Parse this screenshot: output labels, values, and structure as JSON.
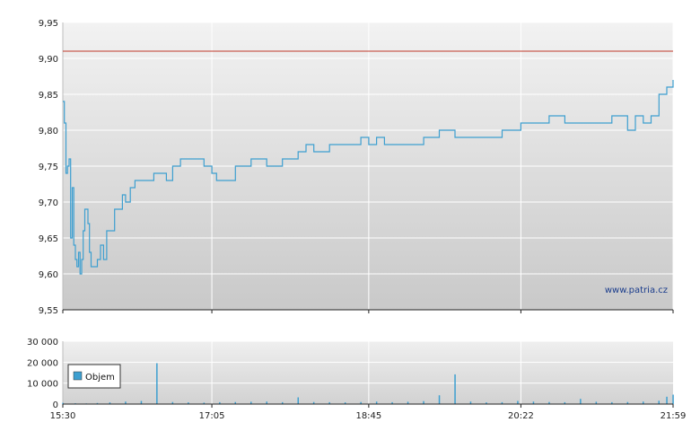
{
  "colors": {
    "price_line": "#3d9fd0",
    "reference_line": "#c0392b",
    "volume_bar": "#3d9fd0",
    "grid": "#ffffff",
    "axis": "#222222",
    "watermark": "#1a3c8c"
  },
  "watermark": "www.patria.cz",
  "chart_data": [
    {
      "type": "line",
      "title": "",
      "xlabel": "",
      "ylabel": "",
      "ylim": [
        9.55,
        9.95
      ],
      "yticks": [
        "9,55",
        "9,60",
        "9,65",
        "9,70",
        "9,75",
        "9,80",
        "9,85",
        "9,90",
        "9,95"
      ],
      "y_tick_values": [
        9.55,
        9.6,
        9.65,
        9.7,
        9.75,
        9.8,
        9.85,
        9.9,
        9.95
      ],
      "xlim": [
        "15:30",
        "21:59"
      ],
      "reference_line": 9.91,
      "grid": true,
      "series": [
        {
          "x": [
            "15:30",
            "15:31",
            "15:32",
            "15:33",
            "15:34",
            "15:35",
            "15:36",
            "15:37",
            "15:38",
            "15:39",
            "15:40",
            "15:41",
            "15:42",
            "15:43",
            "15:44",
            "15:45",
            "15:46",
            "15:47",
            "15:48",
            "15:50",
            "15:52",
            "15:54",
            "15:56",
            "15:58",
            "16:00",
            "16:03",
            "16:06",
            "16:08",
            "16:10",
            "16:13",
            "16:16",
            "16:20",
            "16:24",
            "16:28",
            "16:32",
            "16:36",
            "16:40",
            "16:45",
            "16:50",
            "16:55",
            "17:00",
            "17:05",
            "17:08",
            "17:12",
            "17:16",
            "17:20",
            "17:30",
            "17:40",
            "17:50",
            "18:00",
            "18:05",
            "18:10",
            "18:20",
            "18:30",
            "18:40",
            "18:45",
            "18:50",
            "18:55",
            "19:00",
            "19:10",
            "19:20",
            "19:30",
            "19:40",
            "19:50",
            "20:00",
            "20:10",
            "20:20",
            "20:22",
            "20:30",
            "20:40",
            "20:50",
            "21:00",
            "21:10",
            "21:20",
            "21:30",
            "21:35",
            "21:40",
            "21:45",
            "21:50",
            "21:55",
            "21:59"
          ],
          "values": [
            9.84,
            9.81,
            9.74,
            9.75,
            9.76,
            9.65,
            9.72,
            9.64,
            9.62,
            9.61,
            9.63,
            9.6,
            9.62,
            9.66,
            9.69,
            9.69,
            9.67,
            9.63,
            9.61,
            9.61,
            9.62,
            9.64,
            9.62,
            9.66,
            9.66,
            9.69,
            9.69,
            9.71,
            9.7,
            9.72,
            9.73,
            9.73,
            9.73,
            9.74,
            9.74,
            9.73,
            9.75,
            9.76,
            9.76,
            9.76,
            9.75,
            9.74,
            9.73,
            9.73,
            9.73,
            9.75,
            9.76,
            9.75,
            9.76,
            9.77,
            9.78,
            9.77,
            9.78,
            9.78,
            9.79,
            9.78,
            9.79,
            9.78,
            9.78,
            9.78,
            9.79,
            9.8,
            9.79,
            9.79,
            9.79,
            9.8,
            9.8,
            9.81,
            9.81,
            9.82,
            9.81,
            9.81,
            9.81,
            9.82,
            9.8,
            9.82,
            9.81,
            9.82,
            9.85,
            9.86,
            9.87
          ]
        }
      ]
    },
    {
      "type": "bar",
      "title": "",
      "xlabel": "",
      "ylabel": "",
      "ylim": [
        0,
        30000
      ],
      "yticks": [
        "0",
        "10 000",
        "20 000",
        "30 000"
      ],
      "y_tick_values": [
        0,
        10000,
        20000,
        30000
      ],
      "xticks": [
        "15:30",
        "17:05",
        "18:45",
        "20:22",
        "21:59"
      ],
      "grid": true,
      "legend": {
        "label": "Objem",
        "position": "left"
      },
      "series": [
        {
          "name": "Objem",
          "x": [
            "15:30",
            "15:38",
            "15:45",
            "15:52",
            "16:00",
            "16:10",
            "16:20",
            "16:30",
            "16:40",
            "16:50",
            "17:00",
            "17:10",
            "17:20",
            "17:30",
            "17:40",
            "17:50",
            "18:00",
            "18:10",
            "18:20",
            "18:30",
            "18:40",
            "18:50",
            "19:00",
            "19:10",
            "19:20",
            "19:30",
            "19:40",
            "19:50",
            "20:00",
            "20:10",
            "20:20",
            "20:30",
            "20:40",
            "20:50",
            "21:00",
            "21:10",
            "21:20",
            "21:30",
            "21:40",
            "21:50",
            "21:55",
            "21:59"
          ],
          "values": [
            600,
            400,
            300,
            500,
            800,
            1200,
            1500,
            19500,
            1000,
            800,
            700,
            900,
            1000,
            1100,
            1200,
            900,
            3200,
            1000,
            900,
            800,
            1000,
            1200,
            900,
            1100,
            1400,
            4200,
            14200,
            1200,
            800,
            900,
            1500,
            1200,
            1000,
            900,
            2500,
            1100,
            900,
            1000,
            1200,
            1600,
            3500,
            4500
          ]
        }
      ]
    }
  ]
}
